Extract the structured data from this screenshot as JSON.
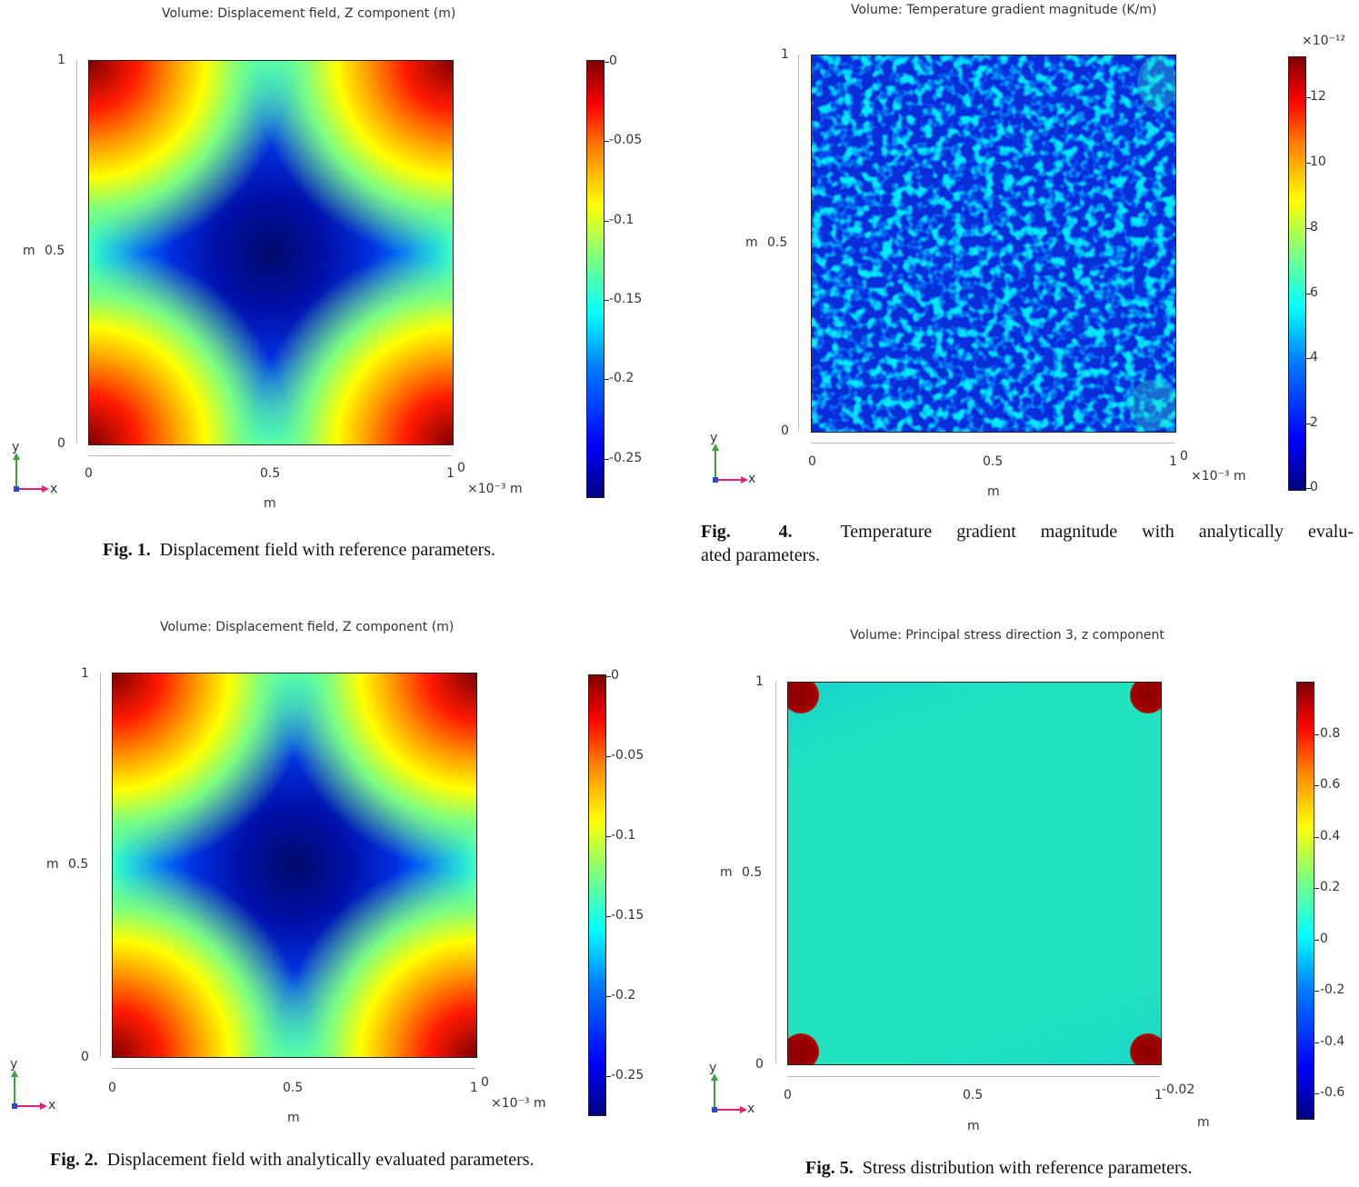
{
  "figures": [
    {
      "id": "fig1",
      "title": "Volume: Displacement field, Z component (m)",
      "caption_label": "Fig. 1.",
      "caption_text": "Displacement field with reference parameters.",
      "y_ticks": [
        "1",
        "0.5",
        "0"
      ],
      "y_unit": "m",
      "x_ticks": [
        "0",
        "0.5",
        "1"
      ],
      "x_unit": "m",
      "x_scale": "×10⁻³ m",
      "x_end_extra": "0",
      "colorbar_ticks": [
        "0",
        "-0.05",
        "-0.1",
        "-0.15",
        "-0.2",
        "-0.25"
      ],
      "colormap": "jet",
      "triad": {
        "y": "y",
        "x": "x"
      }
    },
    {
      "id": "fig4",
      "title": "Volume: Temperature gradient magnitude (K/m)",
      "caption_label": "Fig.",
      "caption_num": "4.",
      "caption_text_line1": "Temperature gradient magnitude with analytically evalu-",
      "caption_text_line2": "ated parameters.",
      "y_ticks": [
        "1",
        "0.5",
        "0"
      ],
      "y_unit": "m",
      "x_ticks": [
        "0",
        "0.5",
        "1"
      ],
      "x_unit": "m",
      "x_scale": "×10⁻³ m",
      "x_end_extra": "0",
      "colorbar_scale": "×10⁻¹²",
      "colorbar_ticks": [
        "12",
        "10",
        "8",
        "6",
        "4",
        "2",
        "0"
      ],
      "colormap": "jet",
      "triad": {
        "y": "y",
        "x": "x"
      }
    },
    {
      "id": "fig2",
      "title": "Volume: Displacement field, Z component (m)",
      "caption_label": "Fig. 2.",
      "caption_text": "Displacement field with analytically evaluated parameters.",
      "y_ticks": [
        "1",
        "0.5",
        "0"
      ],
      "y_unit": "m",
      "x_ticks": [
        "0",
        "0.5",
        "1"
      ],
      "x_unit": "m",
      "x_scale": "×10⁻³ m",
      "x_end_extra": "0",
      "colorbar_ticks": [
        "0",
        "-0.05",
        "-0.1",
        "-0.15",
        "-0.2",
        "-0.25"
      ],
      "colormap": "jet",
      "triad": {
        "y": "y",
        "x": "x"
      }
    },
    {
      "id": "fig5",
      "title": "Volume: Principal stress direction 3, z component",
      "caption_label": "Fig. 5.",
      "caption_text": "Stress distribution with reference parameters.",
      "y_ticks": [
        "1",
        "0.5",
        "0"
      ],
      "y_unit": "m",
      "x_ticks": [
        "0",
        "0.5",
        "1"
      ],
      "x_unit": "m",
      "x_end_extra": "-0.02",
      "extra_unit": "m",
      "colorbar_ticks": [
        "0.8",
        "0.6",
        "0.4",
        "0.2",
        "0",
        "-0.2",
        "-0.4",
        "-0.6"
      ],
      "colormap": "jet",
      "triad": {
        "y": "y",
        "x": "x"
      }
    }
  ],
  "colors": {
    "jet_low": "#00007f",
    "jet_high": "#7f0000",
    "triad_y": "#3aa33a",
    "triad_x": "#e0207a"
  }
}
